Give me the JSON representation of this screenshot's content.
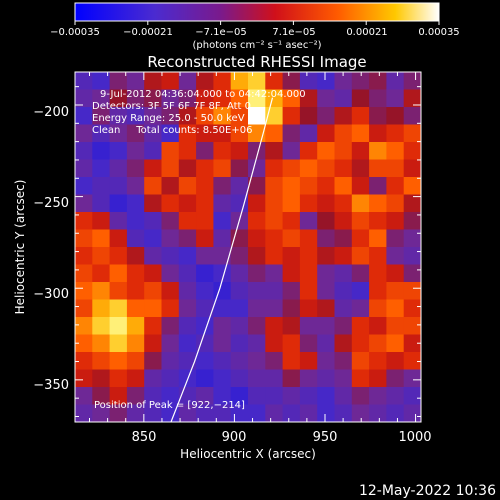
{
  "chart_data": {
    "type": "heatmap",
    "title": "Reconstructed RHESSI Image",
    "xlabel": "Heliocentric X (arcsec)",
    "ylabel": "Heliocentric Y (arcsec)",
    "xlim": [
      812,
      1003
    ],
    "ylim": [
      -373,
      -182
    ],
    "x_ticks": [
      850,
      900,
      950,
      1000
    ],
    "y_ticks": [
      -200,
      -250,
      -300,
      -350
    ],
    "x_tick_labels": [
      "850",
      "900",
      "950",
      "1000"
    ],
    "y_tick_labels": [
      "−200",
      "−250",
      "−300",
      "−350"
    ],
    "colorbar": {
      "range": [
        -0.00035,
        0.00035
      ],
      "tick_labels": [
        "−0.00035",
        "−0.00021",
        "−7.1e−05",
        "7.1e−05",
        "0.00021",
        "0.00035"
      ],
      "unit_label": "(photons cm⁻² s⁻¹ asec⁻²)",
      "colormap": "blue-purple-red-orange-yellow-white"
    },
    "annotations": [
      "9-Jul-2012 04:36:04.000 to 04:42:04.000",
      "Detectors: 3F 5F 6F 7F 8F, Att 0",
      "Energy Range: 25.0 - 50.0 keV",
      "Clean     Total counts: 8.50E+06"
    ],
    "peak_label": "Position of Peak = [922,−214]",
    "peak": [
      922,
      -214
    ],
    "limb_curve": [
      [
        865,
        -373
      ],
      [
        878,
        -340
      ],
      [
        892,
        -300
      ],
      [
        905,
        -255
      ],
      [
        916,
        -215
      ],
      [
        921,
        -196
      ]
    ],
    "intensity_grid_note": "approximate normalized intensity (-1..1) per cell, rows top to bottom",
    "intensity": [
      [
        -0.5,
        -0.6,
        -0.2,
        -0.3,
        0.1,
        0.2,
        -0.3,
        0.1,
        0.3,
        0.7,
        0.8,
        0.3,
        -0.1,
        -0.5,
        -0.6,
        -0.3,
        -0.2,
        -0.1,
        -0.4,
        -0.2
      ],
      [
        -0.4,
        -0.3,
        0.0,
        -0.2,
        -0.1,
        -0.3,
        -0.2,
        0.2,
        0.3,
        0.5,
        0.9,
        0.7,
        0.5,
        0.1,
        -0.3,
        -0.4,
        0.0,
        -0.2,
        -0.3,
        0.1
      ],
      [
        -0.6,
        -0.2,
        -0.4,
        -0.5,
        -0.3,
        -0.2,
        0.1,
        0.4,
        0.6,
        0.4,
        1.0,
        0.8,
        0.3,
        0.0,
        -0.2,
        0.1,
        0.3,
        -0.1,
        0.0,
        -0.2
      ],
      [
        -0.3,
        -0.5,
        -0.3,
        -0.2,
        -0.4,
        -0.6,
        0.3,
        0.2,
        0.2,
        0.4,
        0.6,
        0.5,
        -0.2,
        -0.4,
        0.2,
        0.4,
        0.5,
        0.2,
        0.3,
        0.4
      ],
      [
        -0.5,
        -0.7,
        -0.6,
        -0.3,
        -0.5,
        0.4,
        0.3,
        -0.2,
        0.3,
        0.2,
        -0.2,
        0.1,
        -0.3,
        0.3,
        0.5,
        0.4,
        0.2,
        0.6,
        0.5,
        0.3
      ],
      [
        -0.4,
        -0.6,
        -0.4,
        -0.2,
        0.2,
        0.4,
        0.1,
        0.3,
        0.4,
        -0.1,
        -0.3,
        0.3,
        0.4,
        0.5,
        0.4,
        0.3,
        0.1,
        0.4,
        0.4,
        0.2
      ],
      [
        -0.6,
        -0.5,
        -0.5,
        -0.3,
        0.4,
        0.1,
        0.4,
        0.3,
        -0.2,
        -0.4,
        -0.1,
        0.4,
        0.5,
        0.4,
        0.3,
        0.5,
        0.2,
        -0.2,
        0.3,
        0.5
      ],
      [
        -0.3,
        -0.5,
        -0.7,
        -0.6,
        0.1,
        0.3,
        0.2,
        0.3,
        -0.4,
        -0.5,
        0.2,
        0.4,
        0.5,
        0.3,
        0.2,
        0.3,
        0.6,
        0.5,
        0.4,
        0.1
      ],
      [
        0.3,
        0.2,
        -0.4,
        -0.6,
        -0.5,
        -0.2,
        0.3,
        0.3,
        -0.6,
        -0.3,
        0.3,
        0.4,
        0.3,
        -0.3,
        0.0,
        0.2,
        0.4,
        0.3,
        0.2,
        -0.1
      ],
      [
        0.4,
        0.5,
        0.2,
        -0.5,
        -0.6,
        -0.3,
        -0.2,
        0.2,
        -0.4,
        -0.1,
        0.2,
        0.3,
        0.4,
        0.3,
        -0.2,
        -0.1,
        0.3,
        0.5,
        -0.2,
        -0.3
      ],
      [
        0.3,
        0.4,
        0.3,
        0.1,
        -0.4,
        -0.5,
        -0.6,
        -0.3,
        -0.3,
        -0.2,
        0.1,
        0.3,
        0.2,
        0.3,
        0.1,
        0.2,
        0.4,
        0.3,
        -0.3,
        -0.4
      ],
      [
        0.4,
        0.3,
        0.5,
        0.3,
        0.2,
        -0.3,
        -0.5,
        -0.7,
        -0.6,
        -0.4,
        -0.2,
        -0.3,
        0.2,
        0.3,
        -0.3,
        -0.4,
        -0.2,
        0.3,
        0.2,
        -0.2
      ],
      [
        0.5,
        0.6,
        0.4,
        0.3,
        0.4,
        0.2,
        -0.4,
        -0.6,
        -0.7,
        -0.5,
        -0.4,
        -0.4,
        -0.2,
        0.3,
        -0.3,
        -0.5,
        -0.6,
        0.3,
        0.4,
        0.4
      ],
      [
        0.4,
        0.7,
        0.8,
        0.5,
        0.5,
        0.3,
        -0.3,
        -0.5,
        -0.6,
        -0.6,
        -0.3,
        -0.3,
        -0.1,
        0.2,
        0.1,
        -0.4,
        -0.3,
        0.4,
        0.5,
        0.3
      ],
      [
        0.6,
        0.8,
        0.9,
        0.7,
        0.3,
        -0.2,
        -0.5,
        -0.6,
        -0.3,
        -0.4,
        -0.2,
        0.2,
        0.1,
        -0.3,
        -0.3,
        -0.2,
        0.3,
        0.2,
        0.4,
        0.4
      ],
      [
        0.5,
        0.6,
        0.8,
        0.6,
        0.2,
        -0.3,
        -0.6,
        -0.5,
        -0.3,
        -0.5,
        -0.4,
        0.2,
        0.3,
        -0.2,
        -0.4,
        0.1,
        0.3,
        0.4,
        0.5,
        0.2
      ],
      [
        0.3,
        0.4,
        0.5,
        0.4,
        -0.1,
        -0.4,
        -0.5,
        -0.6,
        -0.5,
        -0.4,
        -0.3,
        -0.2,
        0.3,
        0.2,
        -0.3,
        -0.2,
        0.4,
        0.3,
        0.2,
        0.3
      ],
      [
        0.2,
        0.1,
        0.3,
        0.2,
        -0.4,
        -0.5,
        -0.6,
        -0.7,
        -0.6,
        -0.5,
        -0.4,
        -0.4,
        -0.1,
        -0.3,
        -0.4,
        -0.3,
        0.3,
        0.2,
        -0.2,
        -0.3
      ],
      [
        -0.3,
        -0.1,
        0.2,
        -0.2,
        -0.5,
        -0.6,
        -0.5,
        -0.4,
        -0.6,
        -0.7,
        -0.5,
        -0.5,
        -0.4,
        -0.5,
        -0.6,
        -0.4,
        -0.2,
        -0.3,
        -0.4,
        -0.5
      ],
      [
        -0.4,
        -0.3,
        -0.2,
        -0.4,
        -0.5,
        -0.6,
        -0.4,
        -0.5,
        -0.5,
        -0.6,
        -0.6,
        -0.4,
        -0.5,
        -0.4,
        -0.6,
        -0.5,
        -0.3,
        -0.4,
        -0.5,
        -0.4
      ]
    ]
  },
  "footer": {
    "timestamp": "12-May-2022 10:36"
  },
  "colors": {
    "background": "#000000",
    "text": "#ffffff",
    "limb_line": "#ffffff"
  }
}
